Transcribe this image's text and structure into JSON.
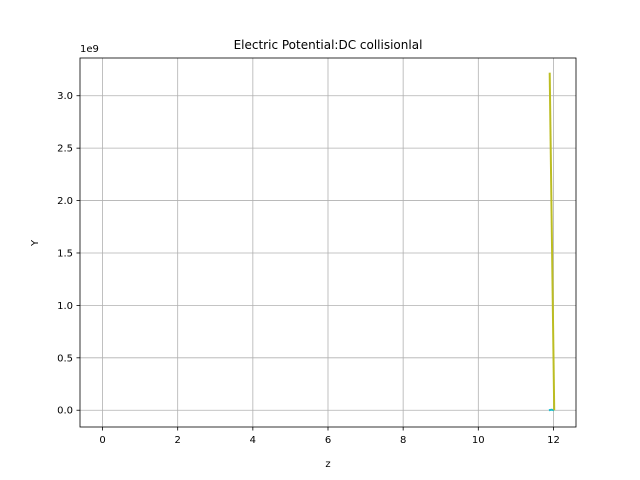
{
  "chart_data": {
    "type": "line",
    "title": "Electric Potential:DC collisionlal",
    "xlabel": "z",
    "ylabel": "Y",
    "offset_text": "1e9",
    "xlim": [
      -0.6,
      12.6
    ],
    "ylim": [
      -160000000,
      3360000000
    ],
    "xticks": [
      0,
      2,
      4,
      6,
      8,
      10,
      12
    ],
    "xtick_labels": [
      "0",
      "2",
      "4",
      "6",
      "8",
      "10",
      "12"
    ],
    "yticks": [
      0,
      500000000,
      1000000000,
      1500000000,
      2000000000,
      2500000000,
      3000000000
    ],
    "ytick_labels": [
      "0.0",
      "0.5",
      "1.0",
      "1.5",
      "2.0",
      "2.5",
      "3.0"
    ],
    "grid": true,
    "series": [
      {
        "color": "#17becf",
        "x": [
          11.88,
          11.95,
          12.02
        ],
        "y": [
          0,
          5000000,
          0
        ]
      },
      {
        "color": "#bcbd22",
        "x": [
          11.9,
          12.02
        ],
        "y": [
          3220000000,
          0
        ]
      }
    ]
  }
}
